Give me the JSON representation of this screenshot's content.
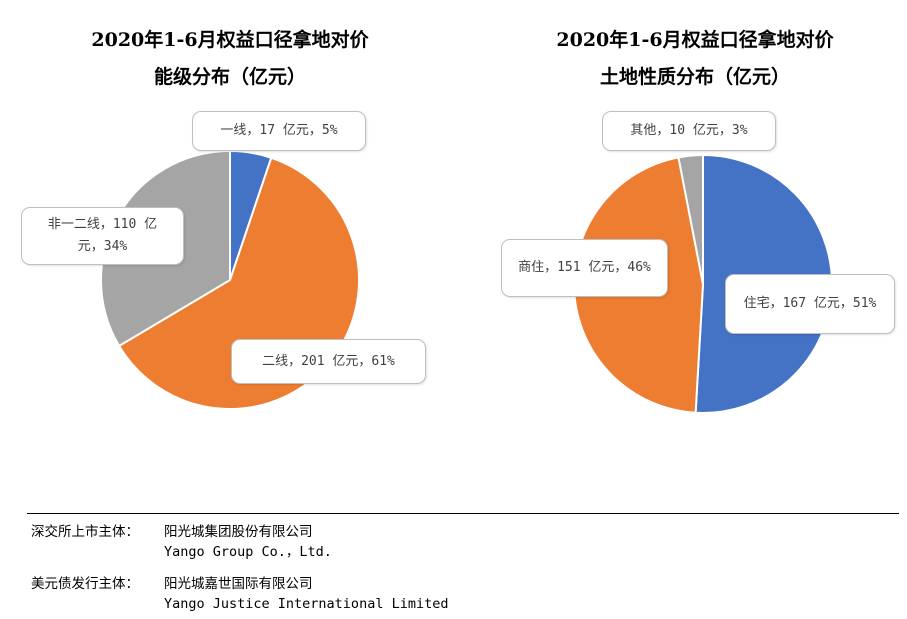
{
  "chart_data": [
    {
      "type": "pie",
      "title_line1": "2020年1-6月权益口径拿地对价",
      "title_line2": "能级分布（亿元）",
      "slices": [
        {
          "name": "一线",
          "value": 17,
          "percent": "5%",
          "label": "一线，17 亿元，5%",
          "color": "#4472C4"
        },
        {
          "name": "二线",
          "value": 201,
          "percent": "61%",
          "label": "二线，201 亿元，61%",
          "color": "#ED7D31"
        },
        {
          "name": "非一二线",
          "value": 110,
          "percent": "34%",
          "label": "非一二线，110 亿元，34%",
          "color": "#A5A5A5"
        }
      ]
    },
    {
      "type": "pie",
      "title_line1": "2020年1-6月权益口径拿地对价",
      "title_line2": "土地性质分布（亿元）",
      "slices": [
        {
          "name": "住宅",
          "value": 167,
          "percent": "51%",
          "label": "住宅，167 亿元，51%",
          "color": "#4472C4"
        },
        {
          "name": "商住",
          "value": 151,
          "percent": "46%",
          "label": "商住，151 亿元，46%",
          "color": "#ED7D31"
        },
        {
          "name": "其他",
          "value": 10,
          "percent": "3%",
          "label": "其他，10 亿元，3%",
          "color": "#A5A5A5"
        }
      ]
    }
  ],
  "footer": {
    "line1_label": "深交所上市主体：",
    "line1_cn": "阳光城集团股份有限公司",
    "line1_en": "Yango Group Co.，Ltd.",
    "line2_label": "美元债发行主体：",
    "line2_cn": "阳光城嘉世国际有限公司",
    "line2_en": "Yango Justice International Limited"
  }
}
